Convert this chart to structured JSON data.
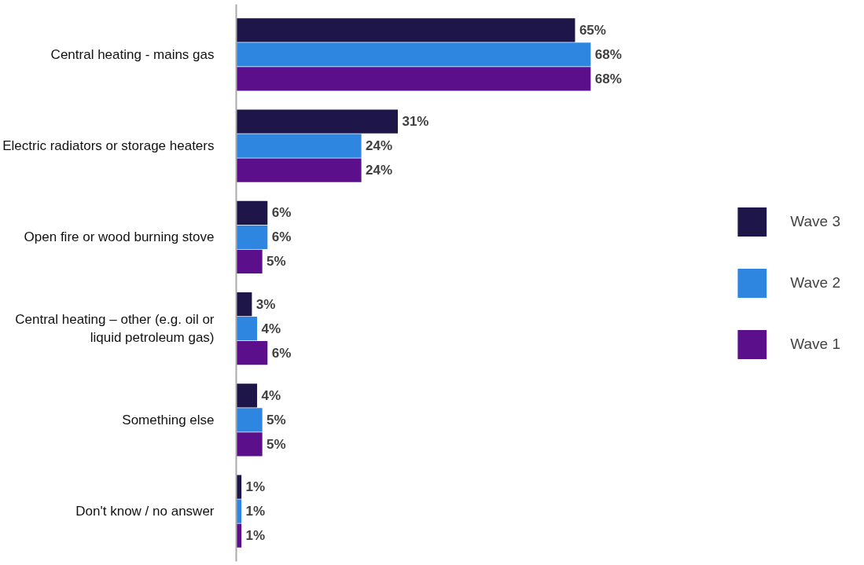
{
  "chart_data": {
    "type": "bar",
    "orientation": "horizontal",
    "categories": [
      "Central heating - mains gas",
      "Electric radiators or storage heaters",
      "Open fire or wood burning stove",
      "Central heating – other (e.g. oil or liquid petroleum gas)",
      "Something else",
      "Don't know / no answer"
    ],
    "series": [
      {
        "name": "Wave 3",
        "color": "#1e1548",
        "values": [
          65,
          31,
          6,
          3,
          4,
          1
        ],
        "value_labels": [
          "65%",
          "31%",
          "6%",
          "3%",
          "4%",
          "1%"
        ]
      },
      {
        "name": "Wave 2",
        "color": "#2e86e0",
        "values": [
          68,
          24,
          6,
          4,
          5,
          1
        ],
        "value_labels": [
          "68%",
          "24%",
          "6%",
          "4%",
          "5%",
          "1%"
        ]
      },
      {
        "name": "Wave 1",
        "color": "#5c0f8b",
        "values": [
          68,
          24,
          5,
          6,
          5,
          1
        ],
        "value_labels": [
          "68%",
          "24%",
          "5%",
          "6%",
          "5%",
          "1%"
        ]
      }
    ],
    "legend": "right",
    "grid": false
  }
}
